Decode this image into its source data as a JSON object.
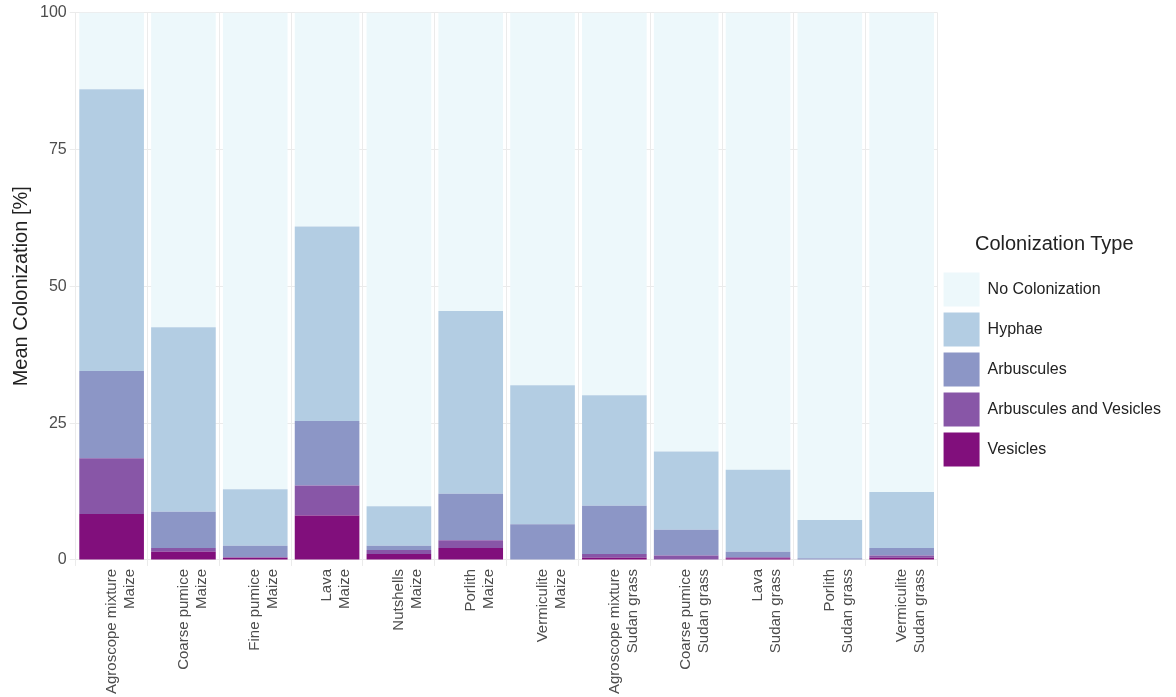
{
  "chart_data": {
    "type": "bar",
    "stacked": true,
    "ylabel": "Mean Colonization [%]",
    "legend_title": "Colonization Type",
    "legend": "right",
    "grid": true,
    "categories": [
      "Agroscope mixture\nMaize",
      "Coarse pumice\nMaize",
      "Fine pumice\nMaize",
      "Lava\nMaize",
      "Nutshells\nMaize",
      "Porlith\nMaize",
      "Vermiculite\nMaize",
      "Agroscope mixture\nSudan grass",
      "Coarse pumice\nSudan grass",
      "Lava\nSudan grass",
      "Porlith\nSudan grass",
      "Vermiculite\nSudan grass"
    ],
    "ylim": [
      0,
      100
    ],
    "yticks": [
      0,
      25,
      50,
      75,
      100
    ],
    "series": [
      {
        "name": "Vesicles",
        "color": "#810f7c",
        "values": [
          8.4,
          1.5,
          0.4,
          8.1,
          1.1,
          2.2,
          0,
          0.4,
          null,
          0.3,
          0,
          0.4
        ]
      },
      {
        "name": "Arbuscules and Vesicles",
        "color": "#8856a7",
        "values": [
          10.2,
          0.7,
          0.1,
          5.5,
          0.7,
          1.4,
          0,
          0.7,
          0.8,
          0.2,
          0,
          0.4
        ]
      },
      {
        "name": "Arbuscules",
        "color": "#8c96c6",
        "values": [
          15.9,
          6.6,
          2.1,
          11.8,
          0.8,
          8.5,
          6.5,
          8.8,
          4.7,
          1.0,
          0.3,
          1.4
        ]
      },
      {
        "name": "Hyphae",
        "color": "#b3cde3",
        "values": [
          51.5,
          33.7,
          10.3,
          35.5,
          7.2,
          33.4,
          25.4,
          20.2,
          14.3,
          15.0,
          7.0,
          10.2
        ]
      },
      {
        "name": "No Colonization",
        "color": "#edf8fb",
        "values": [
          14,
          57.5,
          87.1,
          39.1,
          90.2,
          54.5,
          68.1,
          69.9,
          80.2,
          83.5,
          92.7,
          87.6
        ]
      }
    ]
  }
}
